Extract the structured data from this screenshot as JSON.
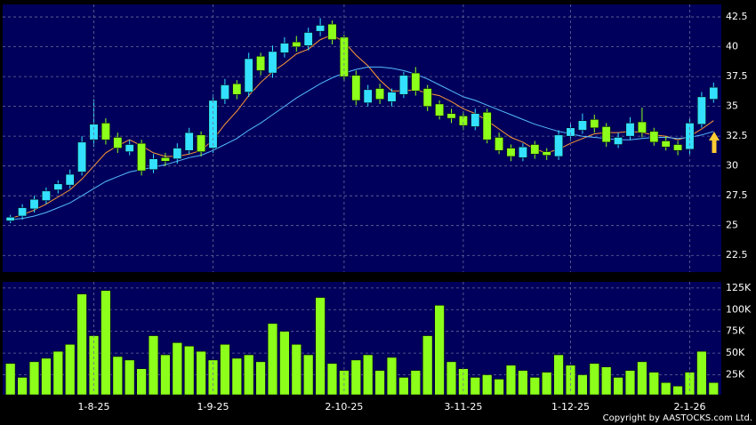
{
  "chart_data": [
    {
      "type": "candlestick",
      "open": [
        25.4,
        25.8,
        26.4,
        27.1,
        28.0,
        28.4,
        29.5,
        32.2,
        33.6,
        32.4,
        31.2,
        31.9,
        29.7,
        30.7,
        30.6,
        31.3,
        32.6,
        31.5,
        35.6,
        36.9,
        36.2,
        39.2,
        37.8,
        39.5,
        40.4,
        40.1,
        41.3,
        41.9,
        40.8,
        37.6,
        35.3,
        36.5,
        35.4,
        36.0,
        37.8,
        36.5,
        35.2,
        34.4,
        34.2,
        33.3,
        34.5,
        32.4,
        31.5,
        30.7,
        31.8,
        31.2,
        30.8,
        32.5,
        33.0,
        33.9,
        33.3,
        31.8,
        32.5,
        33.7,
        32.9,
        32.1,
        31.8,
        31.4,
        33.5,
        35.6
      ],
      "high": [
        25.9,
        26.8,
        27.5,
        28.2,
        28.8,
        29.7,
        32.5,
        35.6,
        34.0,
        32.8,
        32.2,
        32.2,
        31.0,
        31.1,
        31.9,
        33.2,
        32.9,
        36.0,
        37.3,
        37.2,
        39.5,
        39.5,
        40.1,
        40.8,
        40.9,
        41.6,
        42.4,
        42.2,
        41.0,
        38.0,
        36.8,
        36.9,
        36.5,
        37.9,
        38.3,
        36.8,
        35.5,
        34.8,
        34.6,
        34.8,
        34.8,
        32.8,
        31.8,
        31.9,
        32.1,
        31.5,
        33.0,
        33.6,
        34.4,
        34.3,
        33.6,
        32.8,
        34.1,
        34.9,
        33.2,
        32.5,
        32.1,
        34.0,
        36.2,
        37.0
      ],
      "low": [
        25.2,
        25.5,
        26.1,
        26.8,
        27.7,
        28.1,
        29.2,
        31.6,
        31.8,
        31.1,
        30.9,
        29.2,
        29.4,
        30.0,
        30.2,
        31.0,
        30.8,
        31.1,
        35.2,
        35.6,
        35.8,
        37.6,
        37.4,
        39.1,
        39.6,
        39.7,
        40.9,
        40.2,
        37.1,
        35.1,
        35.0,
        35.2,
        35.0,
        35.7,
        35.9,
        34.6,
        33.9,
        33.6,
        33.0,
        33.0,
        31.9,
        31.0,
        30.4,
        30.4,
        30.6,
        30.5,
        30.5,
        32.1,
        32.7,
        32.8,
        31.6,
        31.5,
        32.2,
        32.4,
        31.7,
        31.3,
        30.9,
        31.0,
        33.2,
        35.3
      ],
      "close": [
        25.7,
        26.5,
        27.2,
        27.9,
        28.5,
        29.3,
        32.0,
        33.5,
        32.2,
        31.5,
        31.8,
        29.6,
        30.6,
        30.4,
        31.5,
        32.8,
        31.2,
        35.5,
        36.8,
        36.0,
        39.0,
        38.0,
        39.6,
        40.3,
        40.0,
        41.2,
        41.8,
        40.6,
        37.5,
        35.5,
        36.4,
        35.6,
        36.2,
        37.6,
        36.3,
        35.0,
        34.2,
        34.0,
        33.4,
        34.4,
        32.2,
        31.3,
        30.8,
        31.6,
        31.0,
        30.9,
        32.6,
        33.2,
        33.8,
        33.2,
        32.0,
        32.4,
        33.6,
        32.8,
        32.0,
        31.6,
        31.3,
        33.6,
        35.8,
        36.6
      ],
      "up_color": "#33e0ff",
      "down_color": "#8cff1a",
      "series": [
        {
          "color": "#ff9933",
          "values": [
            25.6,
            25.9,
            26.3,
            26.8,
            27.4,
            28.0,
            28.9,
            30.0,
            31.1,
            31.7,
            32.2,
            31.7,
            31.1,
            30.8,
            30.8,
            31.0,
            31.3,
            32.2,
            33.5,
            34.6,
            35.9,
            37.0,
            37.9,
            38.6,
            39.4,
            39.8,
            40.6,
            41.0,
            40.4,
            39.3,
            38.4,
            37.2,
            36.3,
            36.3,
            36.4,
            36.1,
            35.9,
            35.4,
            34.8,
            34.4,
            33.8,
            33.1,
            32.4,
            32.0,
            31.4,
            31.1,
            31.4,
            31.9,
            32.3,
            32.7,
            32.8,
            32.8,
            32.9,
            32.8,
            32.6,
            32.5,
            32.2,
            32.5,
            33.1,
            33.8
          ]
        },
        {
          "color": "#55bbff",
          "values": [
            25.5,
            25.6,
            25.8,
            26.1,
            26.5,
            26.9,
            27.5,
            28.1,
            28.7,
            29.1,
            29.5,
            29.7,
            29.9,
            30.1,
            30.4,
            30.7,
            30.9,
            31.3,
            31.8,
            32.3,
            33.0,
            33.6,
            34.3,
            35.0,
            35.7,
            36.3,
            36.9,
            37.4,
            37.8,
            38.1,
            38.3,
            38.3,
            38.2,
            38.0,
            37.7,
            37.3,
            36.8,
            36.3,
            35.8,
            35.5,
            35.1,
            34.7,
            34.3,
            33.9,
            33.5,
            33.2,
            32.9,
            32.7,
            32.5,
            32.4,
            32.3,
            32.2,
            32.2,
            32.3,
            32.4,
            32.4,
            32.3,
            32.4,
            32.6,
            32.9
          ]
        }
      ],
      "ylim": [
        21.1,
        43.55
      ],
      "yticks": [
        22.5,
        25,
        27.5,
        30,
        32.5,
        35,
        37.5,
        40,
        42.5
      ],
      "grid": true
    },
    {
      "type": "bar",
      "categories": [
        null,
        null,
        null,
        null,
        null,
        null,
        null,
        "1-8-25",
        null,
        null,
        null,
        null,
        null,
        null,
        null,
        null,
        null,
        "1-9-25",
        null,
        null,
        null,
        null,
        null,
        null,
        null,
        null,
        null,
        null,
        "2-10-25",
        null,
        null,
        null,
        null,
        null,
        null,
        null,
        null,
        null,
        "3-11-25",
        null,
        null,
        null,
        null,
        null,
        null,
        null,
        null,
        "1-12-25",
        null,
        null,
        null,
        null,
        null,
        null,
        null,
        null,
        null,
        "2-1-26",
        null,
        null
      ],
      "values": [
        38000,
        22000,
        40000,
        44000,
        52000,
        60000,
        118000,
        70000,
        122000,
        46000,
        42000,
        32000,
        70000,
        48000,
        62000,
        58000,
        52000,
        42000,
        60000,
        44000,
        48000,
        40000,
        84000,
        75000,
        60000,
        48000,
        114000,
        38000,
        30000,
        42000,
        48000,
        30000,
        45000,
        22000,
        30000,
        70000,
        105000,
        40000,
        32000,
        22000,
        25000,
        20000,
        36000,
        30000,
        22000,
        28000,
        48000,
        36000,
        25000,
        38000,
        34000,
        22000,
        30000,
        40000,
        28000,
        16000,
        12000,
        28000,
        52000,
        16000
      ],
      "color": "#8cff1a",
      "ylim": [
        2000,
        132000
      ],
      "yticks": [
        {
          "value": 25000,
          "label": "25K"
        },
        {
          "value": 50000,
          "label": "50K"
        },
        {
          "value": 75000,
          "label": "75K"
        },
        {
          "value": 100000,
          "label": "100K"
        },
        {
          "value": 125000,
          "label": "125K"
        }
      ],
      "grid": true
    }
  ],
  "copyright": "Copyright by AASTOCKS.com Ltd."
}
